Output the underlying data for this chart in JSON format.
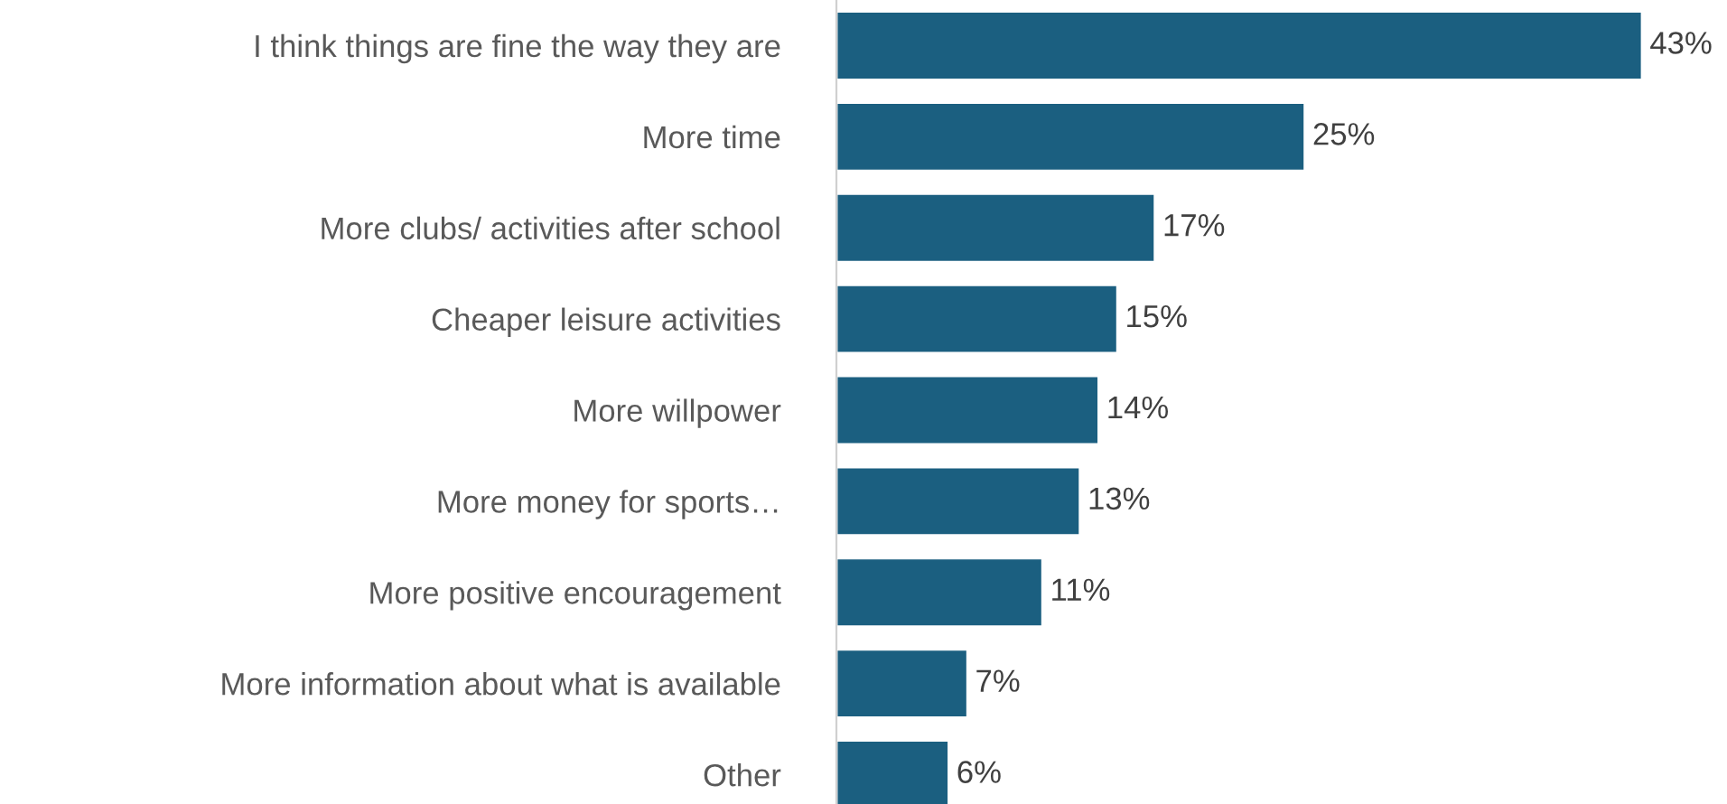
{
  "chart_data": {
    "type": "bar",
    "orientation": "horizontal",
    "categories": [
      "I think things are fine the way they are",
      "More time",
      "More clubs/ activities after school",
      "Cheaper leisure activities",
      "More willpower",
      "More money for sports…",
      "More positive encouragement",
      "More information about what is available",
      "Other"
    ],
    "values": [
      43,
      25,
      17,
      15,
      14,
      13,
      11,
      7,
      6
    ],
    "value_labels": [
      "43%",
      "25%",
      "17%",
      "15%",
      "14%",
      "13%",
      "11%",
      "7%",
      "6%"
    ],
    "color": "#1b5f80",
    "grid": false,
    "legend": false
  }
}
